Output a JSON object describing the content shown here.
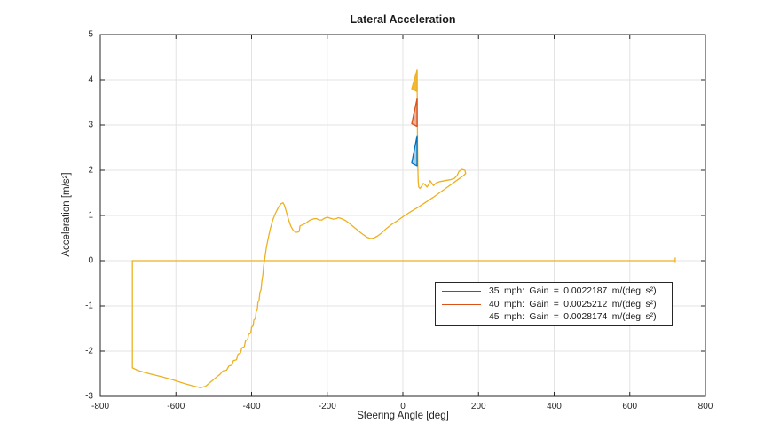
{
  "chart_data": {
    "type": "line",
    "title": "Lateral Acceleration",
    "xlabel": "Steering Angle [deg]",
    "ylabel": "Acceleration  [m/s²]",
    "xlim": [
      -800,
      800
    ],
    "ylim": [
      -3,
      5
    ],
    "xticks": [
      -800,
      -600,
      -400,
      -200,
      0,
      200,
      400,
      600,
      800
    ],
    "yticks": [
      -3,
      -2,
      -1,
      0,
      1,
      2,
      3,
      4,
      5
    ],
    "grid": true,
    "grid_color": "#e3e3e3",
    "axis_color": "#262626",
    "legend": {
      "position": "inside-right-below-center",
      "entries": [
        {
          "label": "35 mph:  Gain = 0.0022187 m/(deg s²)",
          "color": "#0072BD"
        },
        {
          "label": "40 mph:  Gain = 0.0025212 m/(deg s²)",
          "color": "#D95319"
        },
        {
          "label": "45 mph:  Gain = 0.0028174 m/(deg s²)",
          "color": "#EDB120"
        }
      ]
    },
    "series": [
      {
        "name": "zero-baseline-45mph",
        "color": "#EDB120",
        "points": [
          [
            -715,
            0
          ],
          [
            720,
            0
          ],
          [
            720,
            0.06
          ],
          [
            720,
            -0.04
          ],
          [
            720,
            0
          ]
        ]
      },
      {
        "name": "lateral-accel-trace-45mph",
        "color": "#EDB120",
        "points": [
          [
            -715,
            0
          ],
          [
            -715,
            -2.37
          ],
          [
            -700,
            -2.43
          ],
          [
            -670,
            -2.5
          ],
          [
            -640,
            -2.56
          ],
          [
            -610,
            -2.63
          ],
          [
            -580,
            -2.71
          ],
          [
            -555,
            -2.77
          ],
          [
            -535,
            -2.81
          ],
          [
            -522,
            -2.78
          ],
          [
            -508,
            -2.68
          ],
          [
            -495,
            -2.59
          ],
          [
            -483,
            -2.51
          ],
          [
            -476,
            -2.44
          ],
          [
            -466,
            -2.42
          ],
          [
            -460,
            -2.33
          ],
          [
            -452,
            -2.31
          ],
          [
            -448,
            -2.21
          ],
          [
            -440,
            -2.19
          ],
          [
            -436,
            -2.07
          ],
          [
            -429,
            -2.04
          ],
          [
            -426,
            -1.93
          ],
          [
            -419,
            -1.9
          ],
          [
            -416,
            -1.77
          ],
          [
            -410,
            -1.74
          ],
          [
            -408,
            -1.63
          ],
          [
            -402,
            -1.6
          ],
          [
            -400,
            -1.47
          ],
          [
            -396,
            -1.44
          ],
          [
            -394,
            -1.31
          ],
          [
            -390,
            -1.28
          ],
          [
            -388,
            -1.13
          ],
          [
            -385,
            -1.09
          ],
          [
            -383,
            -0.92
          ],
          [
            -380,
            -0.87
          ],
          [
            -378,
            -0.7
          ],
          [
            -375,
            -0.64
          ],
          [
            -373,
            -0.47
          ],
          [
            -370,
            -0.3
          ],
          [
            -368,
            -0.12
          ],
          [
            -365,
            0.05
          ],
          [
            -361,
            0.28
          ],
          [
            -356,
            0.5
          ],
          [
            -350,
            0.72
          ],
          [
            -344,
            0.9
          ],
          [
            -337,
            1.05
          ],
          [
            -329,
            1.18
          ],
          [
            -322,
            1.26
          ],
          [
            -317,
            1.28
          ],
          [
            -313,
            1.22
          ],
          [
            -308,
            1.08
          ],
          [
            -302,
            0.9
          ],
          [
            -296,
            0.76
          ],
          [
            -290,
            0.67
          ],
          [
            -284,
            0.63
          ],
          [
            -278,
            0.63
          ],
          [
            -274,
            0.65
          ],
          [
            -272,
            0.77
          ],
          [
            -266,
            0.79
          ],
          [
            -258,
            0.82
          ],
          [
            -250,
            0.87
          ],
          [
            -242,
            0.91
          ],
          [
            -234,
            0.93
          ],
          [
            -228,
            0.93
          ],
          [
            -222,
            0.9
          ],
          [
            -214,
            0.9
          ],
          [
            -207,
            0.94
          ],
          [
            -200,
            0.96
          ],
          [
            -192,
            0.94
          ],
          [
            -184,
            0.92
          ],
          [
            -177,
            0.93
          ],
          [
            -170,
            0.95
          ],
          [
            -162,
            0.93
          ],
          [
            -152,
            0.89
          ],
          [
            -142,
            0.83
          ],
          [
            -132,
            0.76
          ],
          [
            -122,
            0.69
          ],
          [
            -112,
            0.62
          ],
          [
            -102,
            0.56
          ],
          [
            -93,
            0.51
          ],
          [
            -85,
            0.49
          ],
          [
            -77,
            0.5
          ],
          [
            -68,
            0.54
          ],
          [
            -58,
            0.6
          ],
          [
            -45,
            0.7
          ],
          [
            -30,
            0.8
          ],
          [
            -15,
            0.88
          ],
          [
            0,
            0.97
          ],
          [
            20,
            1.08
          ],
          [
            40,
            1.18
          ],
          [
            60,
            1.29
          ],
          [
            80,
            1.4
          ],
          [
            100,
            1.52
          ],
          [
            120,
            1.64
          ],
          [
            135,
            1.73
          ],
          [
            150,
            1.82
          ],
          [
            160,
            1.88
          ],
          [
            166,
            1.93
          ],
          [
            164,
            2.0
          ],
          [
            156,
            2.02
          ],
          [
            148,
            1.97
          ],
          [
            143,
            1.88
          ],
          [
            136,
            1.82
          ],
          [
            125,
            1.79
          ],
          [
            112,
            1.77
          ],
          [
            98,
            1.75
          ],
          [
            88,
            1.72
          ],
          [
            81,
            1.66
          ],
          [
            76,
            1.72
          ],
          [
            72,
            1.77
          ],
          [
            69,
            1.7
          ],
          [
            64,
            1.63
          ],
          [
            59,
            1.68
          ],
          [
            54,
            1.71
          ],
          [
            49,
            1.64
          ],
          [
            45,
            1.6
          ],
          [
            42,
            1.63
          ],
          [
            40.5,
            1.75
          ],
          [
            39.5,
            2.1
          ],
          [
            38.8,
            2.6
          ],
          [
            38.2,
            3.2
          ],
          [
            37.8,
            3.8
          ],
          [
            37.5,
            4.2
          ]
        ]
      }
    ],
    "arrows": [
      {
        "name": "arrow-35mph",
        "color": "#0072BD",
        "fill_opacity": 0.35,
        "polygon": [
          [
            37.5,
            2.76
          ],
          [
            23.5,
            2.16
          ],
          [
            37.5,
            2.1
          ]
        ]
      },
      {
        "name": "arrow-40mph",
        "color": "#D95319",
        "fill_opacity": 0.45,
        "polygon": [
          [
            37.5,
            3.58
          ],
          [
            23.5,
            3.03
          ],
          [
            37.5,
            2.97
          ]
        ]
      },
      {
        "name": "arrow-45mph",
        "color": "#EDB120",
        "fill_opacity": 0.9,
        "polygon": [
          [
            37.5,
            4.22
          ],
          [
            23.5,
            3.8
          ],
          [
            37.5,
            3.74
          ]
        ]
      }
    ]
  }
}
